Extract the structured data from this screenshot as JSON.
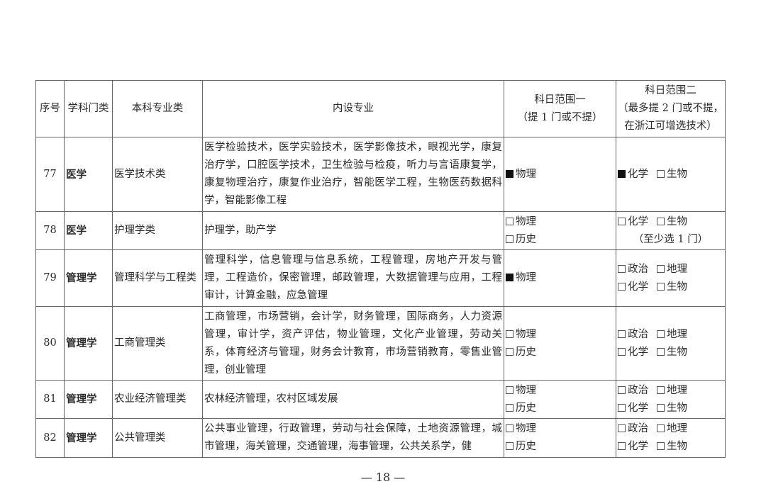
{
  "headers": {
    "no": "序号",
    "discipline": "学科门类",
    "category": "本科专业类",
    "majors": "内设专业",
    "range1_line1": "科日范围一",
    "range1_line2": "（提 1 门或不提）",
    "range2_line1": "科日范围二",
    "range2_line2": "（最多提 2 门或不提，",
    "range2_line3": "在浙江可增选技术）"
  },
  "rows": [
    {
      "no": "77",
      "discipline": "医学",
      "category": "医学技术类",
      "majors": "医学检验技术，医学实验技术，医学影像技术，眼视光学，康复治疗学，口腔医学技术，卫生检验与检疫，听力与言语康复学，康复物理治疗，康复作业治疗，智能医学工程，生物医药数据科学，智能影像工程",
      "range1": [
        [
          {
            "checked": true,
            "label": "物理"
          }
        ]
      ],
      "range2": [
        [
          {
            "checked": true,
            "label": "化学"
          },
          {
            "checked": false,
            "label": "生物"
          }
        ]
      ],
      "note": ""
    },
    {
      "no": "78",
      "discipline": "医学",
      "category": "护理学类",
      "majors": "护理学，助产学",
      "range1": [
        [
          {
            "checked": false,
            "label": "物理"
          }
        ],
        [
          {
            "checked": false,
            "label": "历史"
          }
        ]
      ],
      "range2": [
        [
          {
            "checked": false,
            "label": "化学"
          },
          {
            "checked": false,
            "label": "生物"
          }
        ]
      ],
      "note": "（至少选 1 门）"
    },
    {
      "no": "79",
      "discipline": "管理学",
      "category": "管理科学与工程类",
      "majors": "管理科学，信息管理与信息系统，工程管理，房地产开发与管理，工程造价，保密管理，邮政管理，大数据管理与应用，工程审计，计算金融，应急管理",
      "range1": [
        [
          {
            "checked": true,
            "label": "物理"
          }
        ]
      ],
      "range2": [
        [
          {
            "checked": false,
            "label": "政治"
          },
          {
            "checked": false,
            "label": "地理"
          }
        ],
        [
          {
            "checked": false,
            "label": "化学"
          },
          {
            "checked": false,
            "label": "生物"
          }
        ]
      ],
      "note": ""
    },
    {
      "no": "80",
      "discipline": "管理学",
      "category": "工商管理类",
      "majors": "工商管理，市场营销，会计学，财务管理，国际商务，人力资源管理，审计学，资产评估，物业管理，文化产业管理，劳动关系，体育经济与管理，财务会计教育，市场营销教育，零售业管理，创业管理",
      "range1": [
        [
          {
            "checked": false,
            "label": "物理"
          }
        ],
        [
          {
            "checked": false,
            "label": "历史"
          }
        ]
      ],
      "range2": [
        [
          {
            "checked": false,
            "label": "政治"
          },
          {
            "checked": false,
            "label": "地理"
          }
        ],
        [
          {
            "checked": false,
            "label": "化学"
          },
          {
            "checked": false,
            "label": "生物"
          }
        ]
      ],
      "note": ""
    },
    {
      "no": "81",
      "discipline": "管理学",
      "category": "农业经济管理类",
      "majors": "农林经济管理，农村区域发展",
      "range1": [
        [
          {
            "checked": false,
            "label": "物理"
          }
        ],
        [
          {
            "checked": false,
            "label": "历史"
          }
        ]
      ],
      "range2": [
        [
          {
            "checked": false,
            "label": "政治"
          },
          {
            "checked": false,
            "label": "地理"
          }
        ],
        [
          {
            "checked": false,
            "label": "化学"
          },
          {
            "checked": false,
            "label": "生物"
          }
        ]
      ],
      "note": ""
    },
    {
      "no": "82",
      "discipline": "管理学",
      "category": "公共管理类",
      "majors": "公共事业管理，行政管理，劳动与社会保障，土地资源管理，城市管理，海关管理，交通管理，海事管理，公共关系学，健",
      "range1": [
        [
          {
            "checked": false,
            "label": "物理"
          }
        ],
        [
          {
            "checked": false,
            "label": "历史"
          }
        ]
      ],
      "range2": [
        [
          {
            "checked": false,
            "label": "政治"
          },
          {
            "checked": false,
            "label": "地理"
          }
        ],
        [
          {
            "checked": false,
            "label": "化学"
          },
          {
            "checked": false,
            "label": "生物"
          }
        ]
      ],
      "note": ""
    }
  ],
  "page_number": "— 18 —"
}
